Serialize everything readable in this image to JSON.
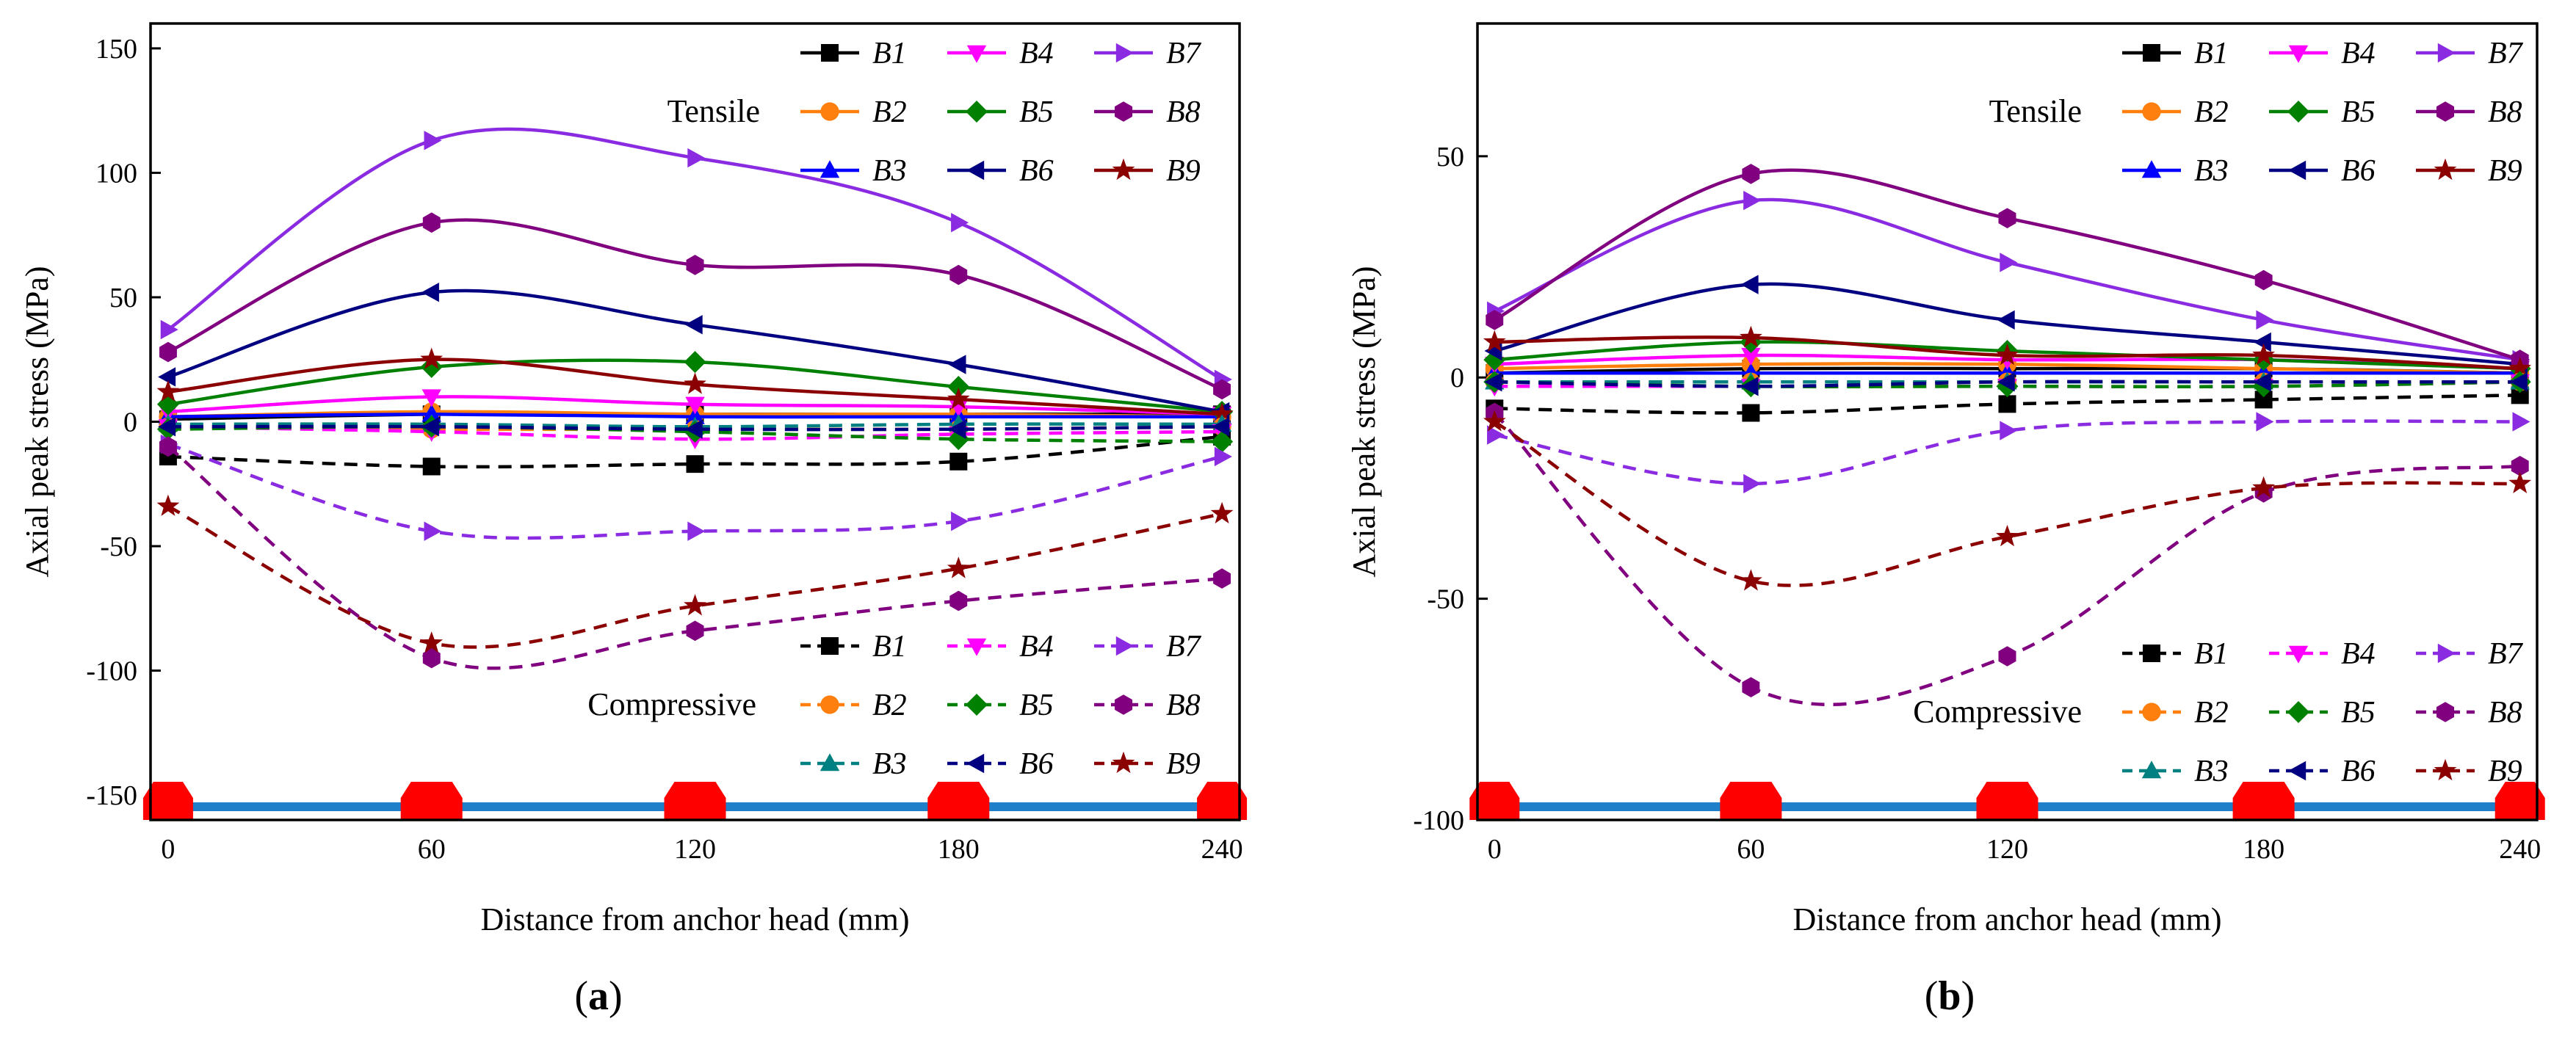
{
  "chart_data": [
    {
      "type": "line",
      "panel_label": "a",
      "xlabel": "Distance from anchor head (mm)",
      "ylabel": "Axial  peak stress (MPa)",
      "x": [
        0,
        60,
        120,
        180,
        240
      ],
      "xlim": [
        -4,
        244
      ],
      "ylim": [
        -160,
        160
      ],
      "xticks": [
        0,
        60,
        120,
        180,
        240
      ],
      "yticks": [
        -150,
        -100,
        -50,
        0,
        50,
        100,
        150
      ],
      "legend_tensile_label": "Tensile",
      "legend_compressive_label": "Compressive",
      "tensile_series": [
        {
          "name": "B1",
          "color": "#000000",
          "marker": "square",
          "values": [
            1,
            3,
            3,
            3,
            3
          ]
        },
        {
          "name": "B2",
          "color": "#ff7f0e",
          "marker": "circle",
          "values": [
            2,
            4,
            3,
            3,
            2
          ]
        },
        {
          "name": "B3",
          "color": "#0000ff",
          "marker": "triangle-up",
          "values": [
            2,
            3,
            2,
            2,
            2
          ]
        },
        {
          "name": "B4",
          "color": "#ff00ff",
          "marker": "triangle-down",
          "values": [
            4,
            10,
            7,
            6,
            3
          ]
        },
        {
          "name": "B5",
          "color": "#008000",
          "marker": "diamond",
          "values": [
            7,
            22,
            24,
            14,
            4
          ]
        },
        {
          "name": "B6",
          "color": "#000080",
          "marker": "triangle-left",
          "values": [
            18,
            52,
            39,
            23,
            4
          ]
        },
        {
          "name": "B7",
          "color": "#8a2be2",
          "marker": "triangle-right",
          "values": [
            37,
            113,
            106,
            80,
            17
          ]
        },
        {
          "name": "B8",
          "color": "#800080",
          "marker": "hexagon",
          "values": [
            28,
            80,
            63,
            59,
            13
          ]
        },
        {
          "name": "B9",
          "color": "#8b0000",
          "marker": "star",
          "values": [
            12,
            25,
            15,
            9,
            3
          ]
        }
      ],
      "compressive_series": [
        {
          "name": "B1",
          "color": "#000000",
          "marker": "square",
          "values": [
            -14,
            -18,
            -17,
            -16,
            -6
          ]
        },
        {
          "name": "B2",
          "color": "#ff7f0e",
          "marker": "circle",
          "values": [
            -2,
            -3,
            -3,
            -3,
            -2
          ]
        },
        {
          "name": "B3",
          "color": "#008080",
          "marker": "triangle-up",
          "values": [
            -1,
            -1,
            -2,
            -1,
            -1
          ]
        },
        {
          "name": "B4",
          "color": "#ff00ff",
          "marker": "triangle-down",
          "values": [
            -2,
            -4,
            -7,
            -5,
            -4
          ]
        },
        {
          "name": "B5",
          "color": "#008000",
          "marker": "diamond",
          "values": [
            -3,
            -2,
            -4,
            -7,
            -8
          ]
        },
        {
          "name": "B6",
          "color": "#000080",
          "marker": "triangle-left",
          "values": [
            -2,
            -2,
            -3,
            -3,
            -2
          ]
        },
        {
          "name": "B7",
          "color": "#8a2be2",
          "marker": "triangle-right",
          "values": [
            -9,
            -44,
            -44,
            -40,
            -14
          ]
        },
        {
          "name": "B8",
          "color": "#800080",
          "marker": "hexagon",
          "values": [
            -10,
            -95,
            -84,
            -72,
            -63
          ]
        },
        {
          "name": "B9",
          "color": "#8b0000",
          "marker": "star",
          "values": [
            -34,
            -89,
            -74,
            -59,
            -37
          ]
        }
      ]
    },
    {
      "type": "line",
      "panel_label": "b",
      "xlabel": "Distance from anchor head (mm)",
      "ylabel": "Axial  peak stress (MPa)",
      "x": [
        0,
        60,
        120,
        180,
        240
      ],
      "xlim": [
        -4,
        244
      ],
      "ylim": [
        -100,
        80
      ],
      "xticks": [
        0,
        60,
        120,
        180,
        240
      ],
      "yticks": [
        -100,
        -50,
        0,
        50
      ],
      "legend_tensile_label": "Tensile",
      "legend_compressive_label": "Compressive",
      "tensile_series": [
        {
          "name": "B1",
          "color": "#000000",
          "marker": "square",
          "values": [
            1,
            2,
            2,
            2,
            1
          ]
        },
        {
          "name": "B2",
          "color": "#ff7f0e",
          "marker": "circle",
          "values": [
            2,
            3,
            3,
            2,
            1
          ]
        },
        {
          "name": "B3",
          "color": "#0000ff",
          "marker": "triangle-up",
          "values": [
            1,
            1,
            1,
            1,
            1
          ]
        },
        {
          "name": "B4",
          "color": "#ff00ff",
          "marker": "triangle-down",
          "values": [
            3,
            5,
            4,
            4,
            2
          ]
        },
        {
          "name": "B5",
          "color": "#008000",
          "marker": "diamond",
          "values": [
            4,
            8,
            6,
            4,
            2
          ]
        },
        {
          "name": "B6",
          "color": "#000080",
          "marker": "triangle-left",
          "values": [
            6,
            21,
            13,
            8,
            3
          ]
        },
        {
          "name": "B7",
          "color": "#8a2be2",
          "marker": "triangle-right",
          "values": [
            15,
            40,
            26,
            13,
            4
          ]
        },
        {
          "name": "B8",
          "color": "#800080",
          "marker": "hexagon",
          "values": [
            13,
            46,
            36,
            22,
            4
          ]
        },
        {
          "name": "B9",
          "color": "#8b0000",
          "marker": "star",
          "values": [
            8,
            9,
            5,
            5,
            2
          ]
        }
      ],
      "compressive_series": [
        {
          "name": "B1",
          "color": "#000000",
          "marker": "square",
          "values": [
            -7,
            -8,
            -6,
            -5,
            -4
          ]
        },
        {
          "name": "B2",
          "color": "#ff7f0e",
          "marker": "circle",
          "values": [
            -1,
            -1,
            -1,
            -1,
            -1
          ]
        },
        {
          "name": "B3",
          "color": "#008080",
          "marker": "triangle-up",
          "values": [
            -1,
            -1,
            -1,
            -1,
            -1
          ]
        },
        {
          "name": "B4",
          "color": "#ff00ff",
          "marker": "triangle-down",
          "values": [
            -2,
            -2,
            -2,
            -2,
            -1
          ]
        },
        {
          "name": "B5",
          "color": "#008000",
          "marker": "diamond",
          "values": [
            -1,
            -2,
            -2,
            -2,
            -1
          ]
        },
        {
          "name": "B6",
          "color": "#000080",
          "marker": "triangle-left",
          "values": [
            -1,
            -2,
            -1,
            -1,
            -1
          ]
        },
        {
          "name": "B7",
          "color": "#8a2be2",
          "marker": "triangle-right",
          "values": [
            -13,
            -24,
            -12,
            -10,
            -10
          ]
        },
        {
          "name": "B8",
          "color": "#800080",
          "marker": "hexagon",
          "values": [
            -8,
            -70,
            -63,
            -26,
            -20
          ]
        },
        {
          "name": "B9",
          "color": "#8b0000",
          "marker": "star",
          "values": [
            -10,
            -46,
            -36,
            -25,
            -24
          ]
        }
      ]
    }
  ]
}
